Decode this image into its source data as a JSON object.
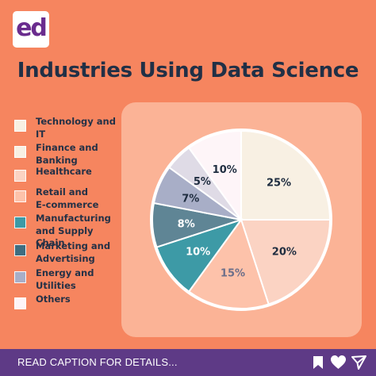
{
  "brand": {
    "logo_text": "ed"
  },
  "title": "Industries Using Data Science",
  "legend": [
    {
      "label": "Technology and\nIT",
      "color": "#f8f0e3"
    },
    {
      "label": "Finance and\nBanking",
      "color": "#f8f0e3"
    },
    {
      "label": "Healthcare",
      "color": "#fbd3c3"
    },
    {
      "label": "Retail and\nE-commerce",
      "color": "#fdc2aa"
    },
    {
      "label": "Manufacturing\n and Supply Chain",
      "color": "#3d9aa6"
    },
    {
      "label": "Marketing and\n Advertising",
      "color": "#3f6d80"
    },
    {
      "label": "Energy and\nUtilities",
      "color": "#a8aec7"
    },
    {
      "label": "Others",
      "color": "#fef5f8"
    }
  ],
  "chart_data": {
    "type": "pie",
    "slices": [
      {
        "label": "25%",
        "value": 25,
        "color": "#f8f0e3"
      },
      {
        "label": "20%",
        "value": 20,
        "color": "#fbd3c3"
      },
      {
        "label": "15%",
        "value": 15,
        "color": "#fdc2aa"
      },
      {
        "label": "10%",
        "value": 10,
        "color": "#3d9aa6"
      },
      {
        "label": "8%",
        "value": 8,
        "color": "#5f8595"
      },
      {
        "label": "7%",
        "value": 7,
        "color": "#a8aec7"
      },
      {
        "label": "5%",
        "value": 5,
        "color": "#dfdbe6"
      },
      {
        "label": "10%",
        "value": 10,
        "color": "#fef5f8"
      }
    ],
    "label_colors": {
      "dark": "#1f2d40",
      "light": "#ffffff",
      "mid": "#6c6f8a"
    }
  },
  "footer": {
    "text": "READ CAPTION FOR DETAILS..."
  }
}
